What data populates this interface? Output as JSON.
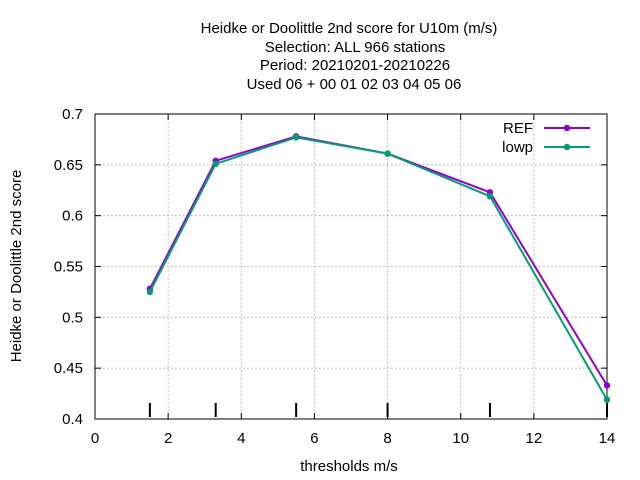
{
  "chart_data": {
    "type": "line",
    "title_lines": [
      "Heidke or Doolittle 2nd score  for U10m (m/s)",
      "Selection: ALL    966 stations",
      "Period: 20210201-20210226",
      "Used  06  + 00 01 02 03 04 05 06"
    ],
    "xlabel": "thresholds m/s",
    "ylabel": "Heidke or Doolittle 2nd score",
    "xlim": [
      0,
      14
    ],
    "ylim": [
      0.4,
      0.7
    ],
    "xticks": [
      0,
      2,
      4,
      6,
      8,
      10,
      12,
      14
    ],
    "yticks": [
      0.4,
      0.45,
      0.5,
      0.55,
      0.6,
      0.65,
      0.7
    ],
    "xtick_labels": [
      "0",
      "2",
      "4",
      "6",
      "8",
      "10",
      "12",
      "14"
    ],
    "ytick_labels": [
      "0.4",
      "0.45",
      "0.5",
      "0.55",
      "0.6",
      "0.65",
      "0.7"
    ],
    "grid": true,
    "legend_position": "top-right",
    "x": [
      1.5,
      3.3,
      5.5,
      8.0,
      10.8,
      14.0
    ],
    "series": [
      {
        "name": "REF",
        "color": "#9400d3",
        "values": [
          0.528,
          0.654,
          0.678,
          0.661,
          0.623,
          0.433
        ]
      },
      {
        "name": "lowp",
        "color": "#009e73",
        "values": [
          0.525,
          0.651,
          0.677,
          0.661,
          0.619,
          0.419
        ]
      }
    ],
    "threshold_markers": [
      1.5,
      3.3,
      5.5,
      8.0,
      10.8,
      14.0
    ]
  }
}
